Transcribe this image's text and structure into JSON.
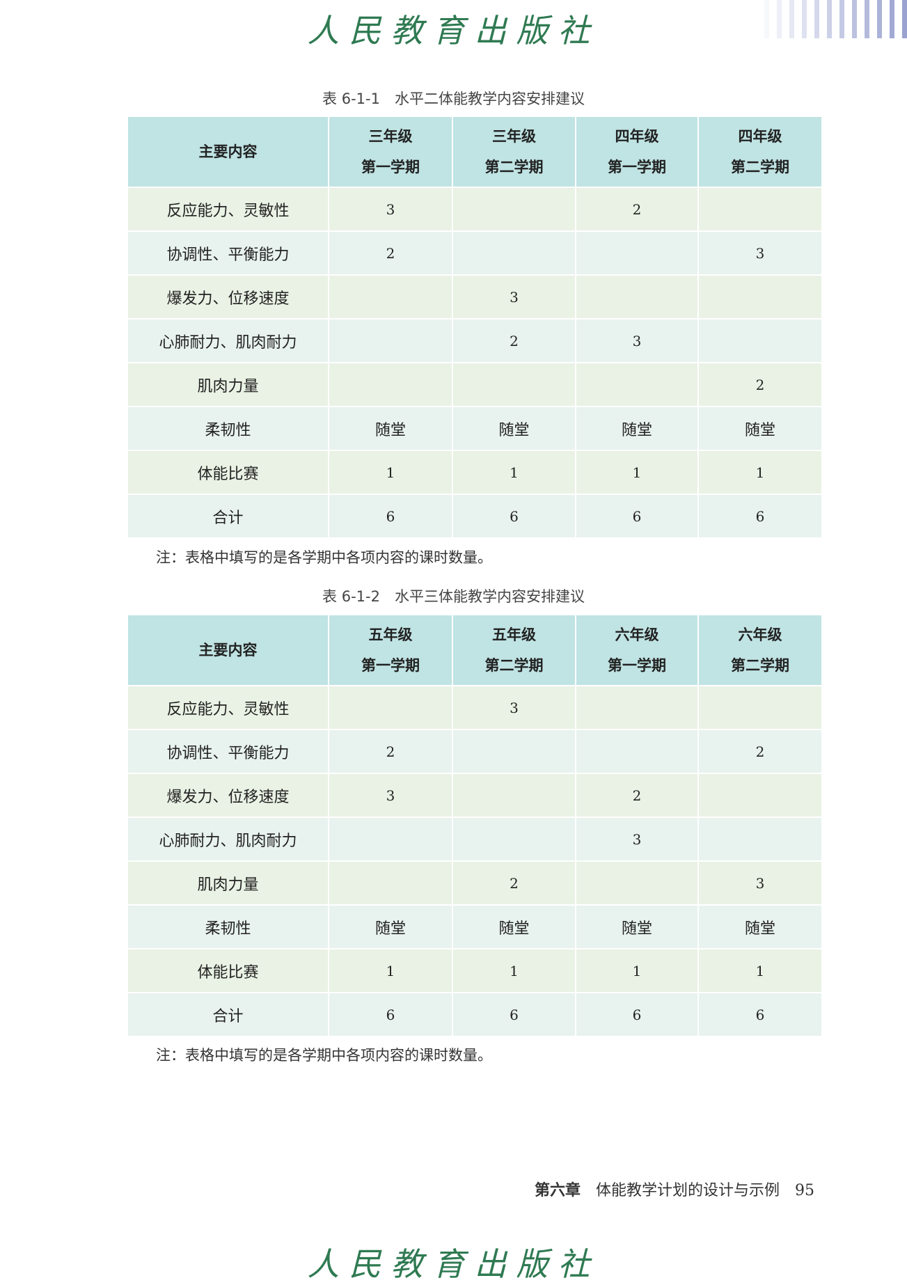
{
  "header": {
    "publisher_logo": "人民教育出版社",
    "stripe_color": "#9aa3d0"
  },
  "tables": [
    {
      "caption": "表 6-1-1　水平二体能教学内容安排建议",
      "columns": [
        {
          "line1": "主要内容",
          "line2": ""
        },
        {
          "line1": "三年级",
          "line2": "第一学期"
        },
        {
          "line1": "三年级",
          "line2": "第二学期"
        },
        {
          "line1": "四年级",
          "line2": "第一学期"
        },
        {
          "line1": "四年级",
          "line2": "第二学期"
        }
      ],
      "rows": [
        [
          "反应能力、灵敏性",
          "3",
          "",
          "2",
          ""
        ],
        [
          "协调性、平衡能力",
          "2",
          "",
          "",
          "3"
        ],
        [
          "爆发力、位移速度",
          "",
          "3",
          "",
          ""
        ],
        [
          "心肺耐力、肌肉耐力",
          "",
          "2",
          "3",
          ""
        ],
        [
          "肌肉力量",
          "",
          "",
          "",
          "2"
        ],
        [
          "柔韧性",
          "随堂",
          "随堂",
          "随堂",
          "随堂"
        ],
        [
          "体能比赛",
          "1",
          "1",
          "1",
          "1"
        ],
        [
          "合计",
          "6",
          "6",
          "6",
          "6"
        ]
      ],
      "note": "注：表格中填写的是各学期中各项内容的课时数量。"
    },
    {
      "caption": "表 6-1-2　水平三体能教学内容安排建议",
      "columns": [
        {
          "line1": "主要内容",
          "line2": ""
        },
        {
          "line1": "五年级",
          "line2": "第一学期"
        },
        {
          "line1": "五年级",
          "line2": "第二学期"
        },
        {
          "line1": "六年级",
          "line2": "第一学期"
        },
        {
          "line1": "六年级",
          "line2": "第二学期"
        }
      ],
      "rows": [
        [
          "反应能力、灵敏性",
          "",
          "3",
          "",
          ""
        ],
        [
          "协调性、平衡能力",
          "2",
          "",
          "",
          "2"
        ],
        [
          "爆发力、位移速度",
          "3",
          "",
          "2",
          ""
        ],
        [
          "心肺耐力、肌肉耐力",
          "",
          "",
          "3",
          ""
        ],
        [
          "肌肉力量",
          "",
          "2",
          "",
          "3"
        ],
        [
          "柔韧性",
          "随堂",
          "随堂",
          "随堂",
          "随堂"
        ],
        [
          "体能比赛",
          "1",
          "1",
          "1",
          "1"
        ],
        [
          "合计",
          "6",
          "6",
          "6",
          "6"
        ]
      ],
      "note": "注：表格中填写的是各学期中各项内容的课时数量。"
    }
  ],
  "footer": {
    "chapter": "第六章",
    "title": "体能教学计划的设计与示例",
    "page": "95"
  }
}
